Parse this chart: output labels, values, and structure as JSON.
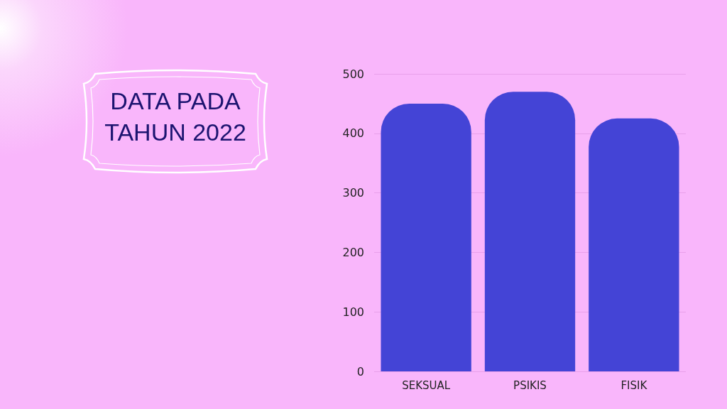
{
  "chart_data": {
    "type": "bar",
    "title": "DATA PADA TAHUN 2022",
    "categories": [
      "SEKSUAL",
      "PSIKIS",
      "FISIK"
    ],
    "series": [
      {
        "color": "#4444d6",
        "values": [
          450,
          470,
          425
        ]
      }
    ],
    "ylim": [
      0,
      500
    ],
    "yticks": [
      0,
      100,
      200,
      300,
      400,
      500
    ],
    "grid": "y"
  }
}
